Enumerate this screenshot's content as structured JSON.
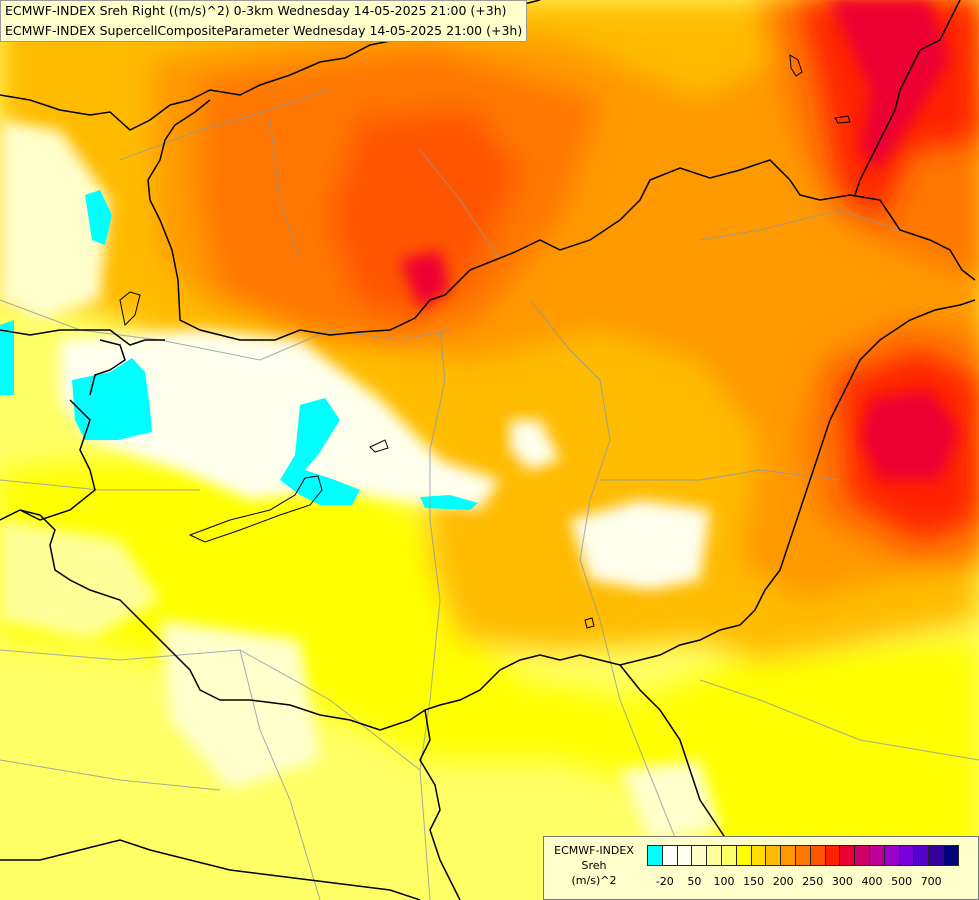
{
  "titles": {
    "line1": "ECMWF-INDEX Sreh Right ((m/s)^2) 0-3km Wednesday 14-05-2025 21:00 (+3h)",
    "line2": "ECMWF-INDEX SupercellCompositeParameter Wednesday 14-05-2025 21:00 (+3h)"
  },
  "legend": {
    "title_line1": "ECMWF-INDEX",
    "title_line2": "Sreh",
    "title_line3": "(m/s)^2",
    "colors": [
      "#00ffff",
      "#ffffff",
      "#ffffee",
      "#ffffcc",
      "#ffff99",
      "#ffff66",
      "#ffff00",
      "#ffdd00",
      "#ffbb00",
      "#ff9900",
      "#ff7700",
      "#ff5500",
      "#ff2200",
      "#ee0033",
      "#cc0066",
      "#bb0099",
      "#9900cc",
      "#7700dd",
      "#5500cc",
      "#330099",
      "#000077"
    ],
    "tick_labels": [
      "-20",
      "50",
      "100",
      "150",
      "200",
      "250",
      "300",
      "400",
      "500",
      "700"
    ]
  }
}
